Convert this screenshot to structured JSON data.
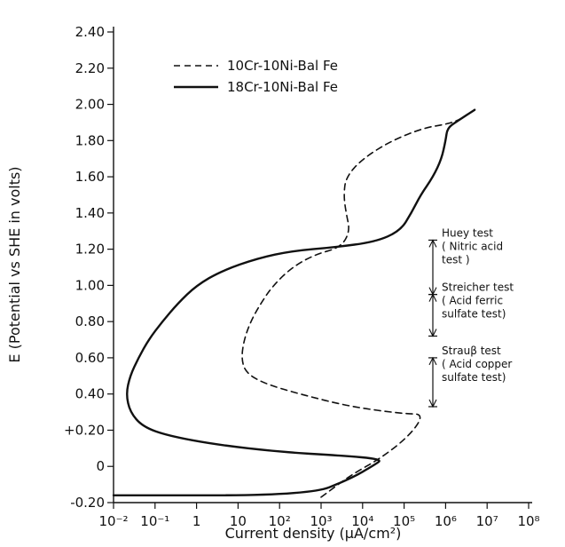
{
  "chart_data": {
    "type": "line",
    "xlabel": "Current density (μA/cm²)",
    "ylabel": "E (Potential vs SHE in volts)",
    "xscale": "log",
    "xlim": [
      0.01,
      100000000
    ],
    "ylim": [
      -0.2,
      2.4
    ],
    "x_ticks": [
      {
        "value": 0.01,
        "label": "10⁻²"
      },
      {
        "value": 0.1,
        "label": "10⁻¹"
      },
      {
        "value": 1,
        "label": "1"
      },
      {
        "value": 10,
        "label": "10"
      },
      {
        "value": 100,
        "label": "10²"
      },
      {
        "value": 1000,
        "label": "10³"
      },
      {
        "value": 10000,
        "label": "10⁴"
      },
      {
        "value": 100000,
        "label": "10⁵"
      },
      {
        "value": 1000000,
        "label": "10⁶"
      },
      {
        "value": 10000000,
        "label": "10⁷"
      },
      {
        "value": 100000000,
        "label": "10⁸"
      }
    ],
    "y_ticks": [
      {
        "value": -0.2,
        "label": "-0.20"
      },
      {
        "value": 0.0,
        "label": "0"
      },
      {
        "value": 0.2,
        "label": "+0.20"
      },
      {
        "value": 0.4,
        "label": "0.40"
      },
      {
        "value": 0.6,
        "label": "0.60"
      },
      {
        "value": 0.8,
        "label": "0.80"
      },
      {
        "value": 1.0,
        "label": "1.00"
      },
      {
        "value": 1.2,
        "label": "1.20"
      },
      {
        "value": 1.4,
        "label": "1.40"
      },
      {
        "value": 1.6,
        "label": "1.60"
      },
      {
        "value": 1.8,
        "label": "1.80"
      },
      {
        "value": 2.0,
        "label": "2.00"
      },
      {
        "value": 2.2,
        "label": "2.20"
      },
      {
        "value": 2.4,
        "label": "2.40"
      }
    ],
    "legend_position": "top-left",
    "grid": false,
    "series": [
      {
        "name": "10Cr-10Ni-Bal Fe",
        "style": "dashed",
        "points": [
          [
            1000,
            -0.17
          ],
          [
            5000,
            -0.05
          ],
          [
            30000,
            0.05
          ],
          [
            150000,
            0.18
          ],
          [
            300000,
            0.29
          ],
          [
            100000,
            0.29
          ],
          [
            5000,
            0.33
          ],
          [
            300,
            0.4
          ],
          [
            40,
            0.46
          ],
          [
            15,
            0.52
          ],
          [
            12,
            0.6
          ],
          [
            14,
            0.7
          ],
          [
            20,
            0.8
          ],
          [
            35,
            0.9
          ],
          [
            70,
            1.0
          ],
          [
            200,
            1.1
          ],
          [
            700,
            1.17
          ],
          [
            3000,
            1.21
          ],
          [
            5000,
            1.3
          ],
          [
            4000,
            1.4
          ],
          [
            3500,
            1.5
          ],
          [
            4000,
            1.6
          ],
          [
            10000,
            1.7
          ],
          [
            50000,
            1.8
          ],
          [
            300000,
            1.87
          ],
          [
            1000000,
            1.89
          ],
          [
            2000000,
            1.91
          ],
          [
            5000000,
            1.97
          ]
        ]
      },
      {
        "name": "18Cr-10Ni-Bal Fe",
        "style": "solid",
        "points": [
          [
            0.01,
            -0.16
          ],
          [
            500,
            -0.16
          ],
          [
            5000,
            -0.07
          ],
          [
            20000,
            0.01
          ],
          [
            30000,
            0.04
          ],
          [
            3000,
            0.06
          ],
          [
            100,
            0.08
          ],
          [
            3,
            0.12
          ],
          [
            0.2,
            0.17
          ],
          [
            0.05,
            0.22
          ],
          [
            0.025,
            0.3
          ],
          [
            0.02,
            0.4
          ],
          [
            0.025,
            0.5
          ],
          [
            0.04,
            0.6
          ],
          [
            0.07,
            0.7
          ],
          [
            0.15,
            0.8
          ],
          [
            0.35,
            0.9
          ],
          [
            1,
            1.0
          ],
          [
            4,
            1.08
          ],
          [
            30,
            1.15
          ],
          [
            200,
            1.19
          ],
          [
            2000,
            1.21
          ],
          [
            20000,
            1.24
          ],
          [
            80000,
            1.3
          ],
          [
            150000,
            1.4
          ],
          [
            250000,
            1.5
          ],
          [
            500000,
            1.6
          ],
          [
            800000,
            1.7
          ],
          [
            1000000,
            1.8
          ],
          [
            1100000,
            1.87
          ],
          [
            2000000,
            1.91
          ],
          [
            5000000,
            1.97
          ]
        ]
      }
    ],
    "annotations": [
      {
        "label_lines": [
          "Huey test",
          "( Nitric acid",
          "test )"
        ],
        "y_range": [
          0.95,
          1.25
        ]
      },
      {
        "label_lines": [
          "Streicher test",
          "( Acid ferric",
          "sulfate test)"
        ],
        "y_range": [
          0.72,
          0.95
        ]
      },
      {
        "label_lines": [
          "Strauβ test",
          "( Acid copper",
          "sulfate test)"
        ],
        "y_range": [
          0.33,
          0.6
        ]
      }
    ]
  }
}
